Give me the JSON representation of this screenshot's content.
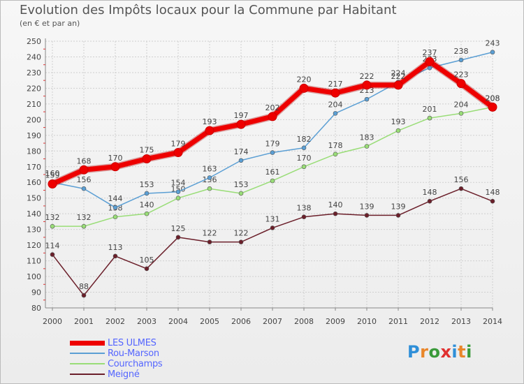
{
  "title": "Evolution des Impôts locaux pour la Commune par Habitant",
  "subtitle": "(en € et par an)",
  "logo": {
    "text": "Proxiti",
    "letter_colors": [
      "#2f8fd8",
      "#e9862a",
      "#3a9a3a",
      "#e03030",
      "#2f8fd8",
      "#e9862a",
      "#3a9a3a"
    ]
  },
  "chart_data": {
    "type": "line",
    "title": "Evolution des Impôts locaux pour la Commune par Habitant",
    "subtitle": "(en € et par an)",
    "xlabel": "",
    "ylabel": "",
    "x": [
      "2000",
      "2001",
      "2002",
      "2003",
      "2004",
      "2005",
      "2006",
      "2007",
      "2008",
      "2009",
      "2010",
      "2011",
      "2012",
      "2013",
      "2014"
    ],
    "ylim": [
      80,
      250
    ],
    "yticks": [
      80,
      90,
      100,
      110,
      120,
      130,
      140,
      150,
      160,
      170,
      180,
      190,
      200,
      210,
      220,
      230,
      240,
      250
    ],
    "grid": true,
    "legend_position": "bottom-left",
    "series": [
      {
        "name": "Meigné",
        "color": "#6b1f2a",
        "values": [
          114,
          88,
          113,
          105,
          125,
          122,
          122,
          131,
          138,
          140,
          139,
          139,
          148,
          156,
          148
        ]
      },
      {
        "name": "Courchamps",
        "color": "#99dd77",
        "values": [
          132,
          132,
          138,
          140,
          150,
          156,
          153,
          161,
          170,
          178,
          183,
          193,
          201,
          204,
          208
        ]
      },
      {
        "name": "Rou-Marson",
        "color": "#5b9fd4",
        "values": [
          160,
          156,
          144,
          153,
          154,
          163,
          174,
          179,
          182,
          204,
          213,
          224,
          233,
          238,
          243
        ]
      },
      {
        "name": "LES ULMES",
        "color": "#ee0000",
        "values": [
          159,
          168,
          170,
          175,
          179,
          193,
          197,
          202,
          220,
          217,
          222,
          222,
          237,
          223,
          208
        ]
      }
    ],
    "legend": [
      "LES ULMES",
      "Rou-Marson",
      "Courchamps",
      "Meigné"
    ]
  }
}
